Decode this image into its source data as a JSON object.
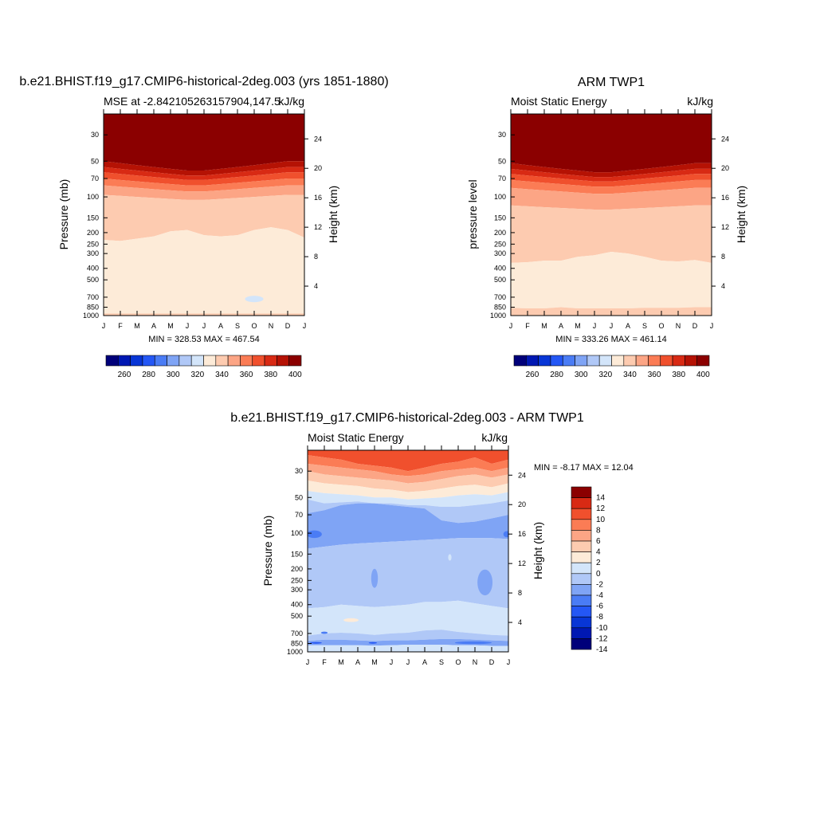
{
  "palettes": {
    "full": [
      "#00007a",
      "#0018b3",
      "#0836d6",
      "#2457f5",
      "#4a7cf5",
      "#7fa4f5",
      "#b0c8f7",
      "#d3e5fa",
      "#fdebd8",
      "#fdcbb0",
      "#fca585",
      "#fb7c55",
      "#f0502d",
      "#d82a14",
      "#b51204",
      "#8b0000"
    ],
    "diff": [
      "#00007a",
      "#0018b3",
      "#0836d6",
      "#2457f5",
      "#4a7cf5",
      "#7fa4f5",
      "#b0c8f7",
      "#d3e5fa",
      "#fdebd8",
      "#fdcbb0",
      "#fca585",
      "#fb7c55",
      "#f0502d",
      "#d82a14",
      "#8b0000"
    ]
  },
  "chart_data": [
    {
      "type": "heatmap",
      "title": "b.e21.BHIST.f19_g17.CMIP6-historical-2deg.003 (yrs 1851-1880)",
      "left_subtitle": "MSE at -2.842105263157904,147.5",
      "right_subtitle": "kJ/kg",
      "ylabel": "Pressure (mb)",
      "ylabel_right": "Height (km)",
      "x_ticks": [
        "J",
        "F",
        "M",
        "A",
        "M",
        "J",
        "J",
        "A",
        "S",
        "O",
        "N",
        "D",
        "J"
      ],
      "y_ticks": [
        30,
        50,
        70,
        100,
        150,
        200,
        250,
        300,
        400,
        500,
        700,
        850,
        1000
      ],
      "ylim": [
        1000,
        20
      ],
      "height_ticks": [
        4,
        8,
        12,
        16,
        20,
        24
      ],
      "stats": "MIN = 328.53 MAX = 467.54",
      "colorbar_labels": [
        "260",
        "280",
        "300",
        "320",
        "340",
        "360",
        "380",
        "400"
      ],
      "levels": [
        250,
        260,
        270,
        280,
        290,
        300,
        310,
        320,
        330,
        340,
        350,
        360,
        370,
        380,
        390,
        400
      ],
      "bands_top_to_bottom": [
        {
          "value": 400,
          "bottom_mb": [
            50,
            52,
            54,
            56,
            58,
            60,
            60,
            58,
            56,
            54,
            52,
            50,
            50
          ]
        },
        {
          "value": 395,
          "bottom_mb": [
            56,
            58,
            60,
            62,
            64,
            66,
            66,
            64,
            62,
            60,
            58,
            56,
            56
          ]
        },
        {
          "value": 385,
          "bottom_mb": [
            62,
            64,
            66,
            68,
            70,
            72,
            72,
            70,
            68,
            66,
            64,
            62,
            62
          ]
        },
        {
          "value": 375,
          "bottom_mb": [
            70,
            72,
            74,
            76,
            78,
            80,
            80,
            78,
            76,
            74,
            72,
            70,
            70
          ]
        },
        {
          "value": 365,
          "bottom_mb": [
            80,
            82,
            84,
            86,
            88,
            90,
            90,
            88,
            86,
            84,
            82,
            80,
            80
          ]
        },
        {
          "value": 355,
          "bottom_mb": [
            96,
            98,
            100,
            102,
            104,
            106,
            106,
            104,
            102,
            100,
            98,
            96,
            96
          ]
        },
        {
          "value": 345,
          "bottom_mb": [
            230,
            235,
            225,
            215,
            195,
            190,
            210,
            215,
            210,
            190,
            180,
            190,
            220
          ]
        },
        {
          "value": 335,
          "bottom_mb": [
            960,
            960,
            960,
            960,
            960,
            960,
            960,
            960,
            960,
            960,
            960,
            960,
            960
          ]
        },
        {
          "value": 345,
          "bottom_mb": [
            1000,
            1000,
            1000,
            1000,
            1000,
            1000,
            1000,
            1000,
            1000,
            1000,
            1000,
            1000,
            1000
          ]
        }
      ],
      "patches": [
        {
          "value": 325,
          "month": 9.0,
          "p_center": 725,
          "month_halfwidth": 0.55,
          "p_top": 680,
          "p_bottom": 770
        }
      ]
    },
    {
      "type": "heatmap",
      "title": "ARM TWP1",
      "left_subtitle": "Moist Static Energy",
      "right_subtitle": "kJ/kg",
      "ylabel": "pressure level",
      "ylabel_right": "Height (km)",
      "x_ticks": [
        "J",
        "F",
        "M",
        "A",
        "M",
        "J",
        "J",
        "A",
        "S",
        "O",
        "N",
        "D",
        "J"
      ],
      "y_ticks": [
        30,
        50,
        70,
        100,
        150,
        200,
        250,
        300,
        400,
        500,
        700,
        850,
        1000
      ],
      "ylim": [
        1000,
        20
      ],
      "height_ticks": [
        4,
        8,
        12,
        16,
        20,
        24
      ],
      "stats": "MIN = 333.26 MAX = 461.14",
      "colorbar_labels": [
        "260",
        "280",
        "300",
        "320",
        "340",
        "360",
        "380",
        "400"
      ],
      "levels": [
        250,
        260,
        270,
        280,
        290,
        300,
        310,
        320,
        330,
        340,
        350,
        360,
        370,
        380,
        390,
        400
      ],
      "bands_top_to_bottom": [
        {
          "value": 400,
          "bottom_mb": [
            52,
            54,
            56,
            58,
            60,
            62,
            62,
            60,
            58,
            56,
            54,
            52,
            52
          ]
        },
        {
          "value": 395,
          "bottom_mb": [
            58,
            60,
            62,
            64,
            66,
            68,
            68,
            66,
            64,
            62,
            60,
            58,
            58
          ]
        },
        {
          "value": 385,
          "bottom_mb": [
            64,
            66,
            68,
            70,
            72,
            74,
            74,
            72,
            70,
            68,
            66,
            64,
            64
          ]
        },
        {
          "value": 375,
          "bottom_mb": [
            72,
            74,
            76,
            78,
            80,
            82,
            82,
            80,
            78,
            76,
            74,
            72,
            72
          ]
        },
        {
          "value": 365,
          "bottom_mb": [
            84,
            86,
            88,
            90,
            92,
            94,
            94,
            92,
            90,
            88,
            86,
            84,
            84
          ]
        },
        {
          "value": 355,
          "bottom_mb": [
            118,
            120,
            122,
            124,
            126,
            128,
            128,
            126,
            124,
            122,
            120,
            118,
            118
          ]
        },
        {
          "value": 345,
          "bottom_mb": [
            360,
            355,
            345,
            345,
            320,
            310,
            290,
            300,
            320,
            345,
            350,
            340,
            360
          ]
        },
        {
          "value": 335,
          "bottom_mb": [
            860,
            870,
            870,
            850,
            870,
            870,
            870,
            870,
            860,
            860,
            860,
            850,
            850
          ]
        },
        {
          "value": 345,
          "bottom_mb": [
            1000,
            1000,
            1000,
            1000,
            1000,
            1000,
            1000,
            1000,
            1000,
            1000,
            1000,
            1000,
            1000
          ]
        }
      ],
      "patches": []
    },
    {
      "type": "heatmap",
      "title": "b.e21.BHIST.f19_g17.CMIP6-historical-2deg.003 - ARM TWP1",
      "left_subtitle": "Moist Static Energy",
      "right_subtitle": "kJ/kg",
      "ylabel": "Pressure (mb)",
      "ylabel_right": "Height (km)",
      "x_ticks": [
        "J",
        "F",
        "M",
        "A",
        "M",
        "J",
        "J",
        "A",
        "S",
        "O",
        "N",
        "D",
        "J"
      ],
      "y_ticks": [
        30,
        50,
        70,
        100,
        150,
        200,
        250,
        300,
        400,
        500,
        700,
        850,
        1000
      ],
      "ylim": [
        1000,
        20
      ],
      "height_ticks": [
        4,
        8,
        12,
        16,
        20,
        24
      ],
      "stats": "MIN =  -8.17 MAX =  12.04",
      "colorbar_labels": [
        "14",
        "12",
        "10",
        "8",
        "6",
        "4",
        "2",
        "0",
        "-2",
        "-4",
        "-6",
        "-8",
        "-10",
        "-12",
        "-14"
      ],
      "levels": [
        -15,
        -13,
        -11,
        -9,
        -7,
        -5,
        -3,
        -1,
        1,
        3,
        5,
        7,
        9,
        11,
        13
      ],
      "bands_top_to_bottom": [
        {
          "value": 9,
          "bottom_mb": [
            22,
            23,
            24,
            26,
            27,
            28,
            30,
            28,
            26,
            25,
            23,
            26,
            24
          ]
        },
        {
          "value": 7,
          "bottom_mb": [
            26,
            27,
            28,
            29,
            30,
            32,
            33,
            32,
            30,
            29,
            28,
            30,
            28
          ]
        },
        {
          "value": 5,
          "bottom_mb": [
            30,
            32,
            33,
            34,
            35,
            36,
            38,
            37,
            35,
            33,
            32,
            34,
            32
          ]
        },
        {
          "value": 3,
          "bottom_mb": [
            36,
            38,
            39,
            40,
            42,
            43,
            45,
            44,
            42,
            40,
            39,
            41,
            38
          ]
        },
        {
          "value": 1,
          "bottom_mb": [
            44,
            46,
            47,
            48,
            50,
            50,
            52,
            51,
            50,
            48,
            47,
            48,
            45
          ]
        },
        {
          "value": -1,
          "bottom_mb": [
            52,
            56,
            55,
            54,
            56,
            56,
            58,
            58,
            60,
            60,
            58,
            56,
            53
          ]
        },
        {
          "value": -3,
          "bottom_mb": [
            68,
            64,
            58,
            56,
            56,
            58,
            60,
            62,
            78,
            82,
            80,
            75,
            70
          ]
        },
        {
          "value": -5,
          "bottom_mb": [
            135,
            130,
            125,
            122,
            120,
            118,
            116,
            114,
            112,
            110,
            110,
            110,
            112
          ]
        },
        {
          "value": -3,
          "bottom_mb": [
            430,
            420,
            400,
            410,
            420,
            410,
            400,
            380,
            380,
            370,
            390,
            410,
            430
          ]
        },
        {
          "value": -1,
          "bottom_mb": [
            730,
            700,
            690,
            700,
            720,
            700,
            690,
            660,
            650,
            680,
            700,
            720,
            730
          ]
        },
        {
          "value": -3,
          "bottom_mb": [
            810,
            790,
            790,
            800,
            810,
            800,
            800,
            790,
            780,
            780,
            790,
            800,
            810
          ]
        },
        {
          "value": -5,
          "bottom_mb": [
            880,
            880,
            880,
            880,
            885,
            880,
            870,
            870,
            870,
            880,
            880,
            890,
            890
          ]
        },
        {
          "value": -1,
          "bottom_mb": [
            1000,
            1000,
            1000,
            1000,
            1000,
            1000,
            1000,
            1000,
            1000,
            1000,
            1000,
            1000,
            1000
          ]
        }
      ],
      "patches": [
        {
          "value": -7,
          "month": 0.4,
          "p_center": 102,
          "month_halfwidth": 0.45,
          "p_top": 95,
          "p_bottom": 110
        },
        {
          "value": -7,
          "month": 11.9,
          "p_center": 102,
          "month_halfwidth": 0.2,
          "p_top": 96,
          "p_bottom": 108
        },
        {
          "value": -5,
          "month": 4.0,
          "p_center": 240,
          "month_halfwidth": 0.2,
          "p_top": 200,
          "p_bottom": 290
        },
        {
          "value": -5,
          "month": 10.6,
          "p_center": 260,
          "month_halfwidth": 0.45,
          "p_top": 200,
          "p_bottom": 330
        },
        {
          "value": -1,
          "month": 8.5,
          "p_center": 160,
          "month_halfwidth": 0.1,
          "p_top": 150,
          "p_bottom": 170
        },
        {
          "value": 1,
          "month": 2.6,
          "p_center": 540,
          "month_halfwidth": 0.45,
          "p_top": 520,
          "p_bottom": 560
        },
        {
          "value": -7,
          "month": 9.9,
          "p_center": 838,
          "month_halfwidth": 1.1,
          "p_top": 815,
          "p_bottom": 860
        },
        {
          "value": -7,
          "month": 1.0,
          "p_center": 690,
          "month_halfwidth": 0.2,
          "p_top": 675,
          "p_bottom": 705
        },
        {
          "value": -9,
          "month": 0.5,
          "p_center": 840,
          "month_halfwidth": 0.35,
          "p_top": 835,
          "p_bottom": 845
        },
        {
          "value": -9,
          "month": 3.9,
          "p_center": 840,
          "month_halfwidth": 0.25,
          "p_top": 830,
          "p_bottom": 850
        }
      ]
    }
  ]
}
